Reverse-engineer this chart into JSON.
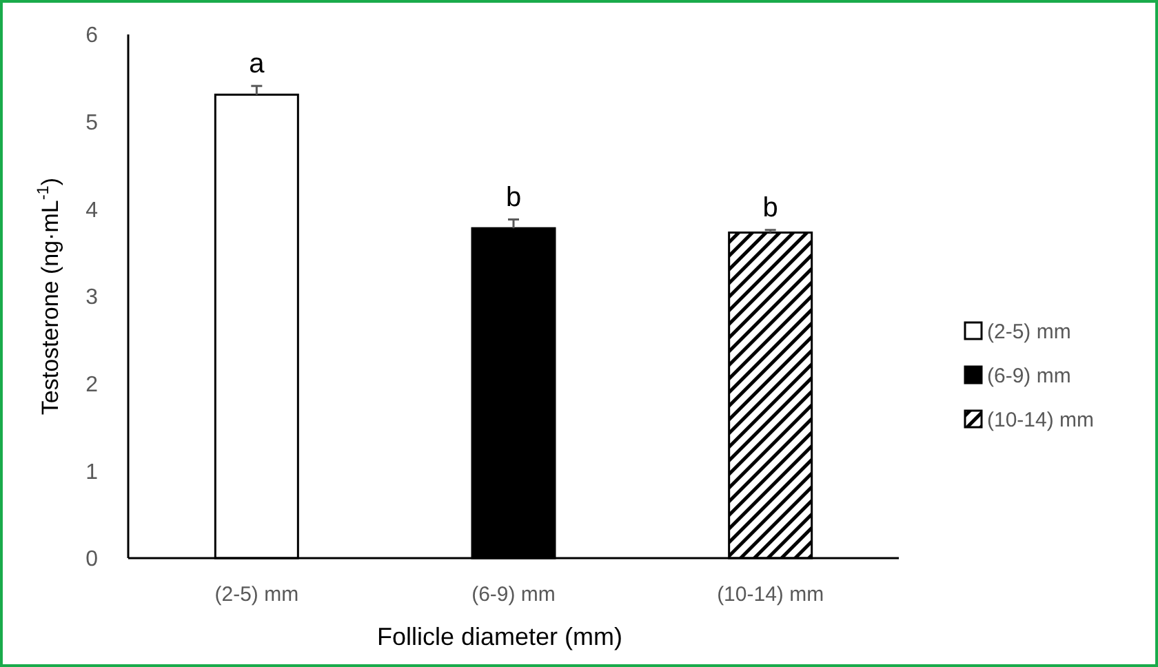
{
  "chart_data": {
    "type": "bar",
    "xlabel": "Follicle diameter (mm)",
    "ylabel": "Testosterone (ng·mL$^{-1}$)",
    "categories": [
      "(2-5) mm",
      "(6-9) mm",
      "(10-14) mm"
    ],
    "series": [
      {
        "name": "(2-5) mm",
        "color": "#ffffff",
        "values": [
          5.31,
          null,
          null
        ],
        "errors": [
          0.1,
          null,
          null
        ]
      },
      {
        "name": "(6-9) mm",
        "color": "#000000",
        "values": [
          null,
          3.78,
          null
        ],
        "errors": [
          null,
          0.1,
          null
        ]
      },
      {
        "name": "(10-14) mm",
        "color": "#000000",
        "values": [
          null,
          null,
          3.73
        ],
        "errors": [
          null,
          null,
          0.03
        ]
      }
    ],
    "ylim": [
      0,
      6
    ],
    "yticks": [
      0,
      1,
      2,
      3,
      4,
      5,
      6
    ],
    "grid": false,
    "legend": "right",
    "annotations": [
      {
        "text": "a",
        "x": "(2-5) mm",
        "y": 5.41
      },
      {
        "text": "b",
        "x": "(6-9) mm",
        "y": 3.88
      },
      {
        "text": "b",
        "x": "(10-14) mm",
        "y": 3.76
      }
    ]
  }
}
